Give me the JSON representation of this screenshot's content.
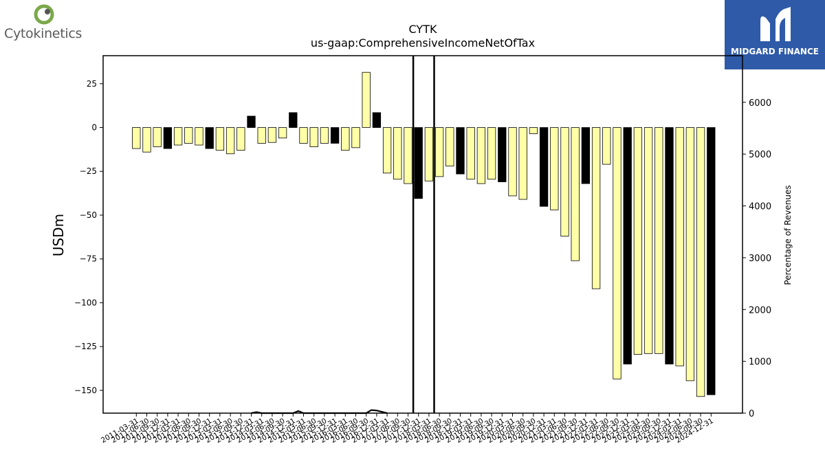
{
  "company_logo": {
    "name": "Cytokinetics"
  },
  "sponsor_logo": {
    "name": "MIDGARD FINANCE"
  },
  "colors": {
    "bar_fill": "#ffffa8",
    "bar_highlight": "#000000",
    "edge": "#000000",
    "logo_bg": "#2e5aa8"
  },
  "chart_data": {
    "type": "bar",
    "title": "CYTK",
    "subtitle": "us-gaap:ComprehensiveIncomeNetOfTax",
    "ylabel": "USDm",
    "y2label": "Percentage of Revenues",
    "ylim": [
      -163,
      41
    ],
    "y2lim": [
      0,
      6900
    ],
    "yticks": [
      25,
      0,
      -25,
      -50,
      -75,
      -100,
      -125,
      -150
    ],
    "y2ticks": [
      6000,
      5000,
      4000,
      3000,
      2000,
      1000,
      0
    ],
    "grid": false,
    "categories": [
      "2011-03-31",
      "2011-06-30",
      "2011-09-30",
      "2011-12-31",
      "2012-03-31",
      "2012-06-30",
      "2012-09-30",
      "2012-12-31",
      "2013-03-31",
      "2013-06-30",
      "2013-09-30",
      "2013-12-31",
      "2014-03-31",
      "2014-06-30",
      "2014-09-30",
      "2014-12-31",
      "2015-03-31",
      "2015-06-30",
      "2015-09-30",
      "2015-12-31",
      "2016-03-31",
      "2016-06-30",
      "2016-09-30",
      "2016-12-31",
      "2017-03-31",
      "2017-06-30",
      "2017-09-30",
      "2017-12-31",
      "2018-03-31",
      "2018-06-30",
      "2018-09-30",
      "2018-12-31",
      "2019-03-31",
      "2019-06-30",
      "2019-09-30",
      "2019-12-31",
      "2020-03-31",
      "2020-06-30",
      "2020-09-30",
      "2020-12-31",
      "2021-03-31",
      "2021-06-30",
      "2021-09-30",
      "2021-12-31",
      "2022-03-31",
      "2022-06-30",
      "2022-09-30",
      "2022-12-31",
      "2023-03-31",
      "2023-06-30",
      "2023-09-30",
      "2023-12-31",
      "2024-03-31",
      "2024-06-30",
      "2024-09-30",
      "2024-12-31"
    ],
    "values": [
      -12,
      -14,
      -11,
      -12,
      -10,
      -9,
      -10,
      -12,
      -13,
      -15,
      -13,
      6.5,
      -9,
      -8.5,
      -6,
      8.5,
      -9,
      -11,
      -9,
      -9,
      -13,
      -11.5,
      31.5,
      8.5,
      -26,
      -29.5,
      -32,
      -40.5,
      -30.5,
      -28,
      -22,
      -26.5,
      -29.5,
      -32,
      -29.5,
      -31,
      -39,
      -41,
      -3.5,
      -45,
      -47,
      -62,
      -76,
      -32,
      -92,
      -21,
      -143.5,
      -135,
      -129.5,
      -129,
      -129,
      -135,
      -136,
      -144.5,
      -153.5,
      -152.5
    ],
    "highlight": [
      false,
      false,
      false,
      true,
      false,
      false,
      false,
      true,
      false,
      false,
      false,
      true,
      false,
      false,
      false,
      true,
      false,
      false,
      false,
      true,
      false,
      false,
      false,
      true,
      false,
      false,
      false,
      true,
      false,
      false,
      false,
      true,
      false,
      false,
      false,
      true,
      false,
      false,
      false,
      true,
      false,
      false,
      false,
      true,
      false,
      false,
      false,
      true,
      false,
      false,
      false,
      true,
      false,
      false,
      false,
      true
    ],
    "pct_revenue_line": [
      [
        11,
        0
      ],
      [
        11.5,
        20
      ],
      [
        12,
        0
      ],
      [
        15,
        0
      ],
      [
        15.5,
        40
      ],
      [
        16,
        0
      ],
      [
        22,
        0
      ],
      [
        22.5,
        60
      ],
      [
        23,
        50
      ],
      [
        24,
        0
      ]
    ],
    "vlines_at": [
      26.5,
      28.5
    ]
  }
}
